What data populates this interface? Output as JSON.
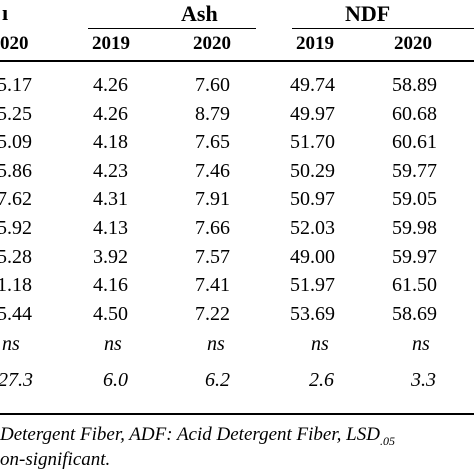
{
  "header": {
    "groups": [
      {
        "label": "ı"
      },
      {
        "label": "Ash"
      },
      {
        "label": "NDF"
      }
    ],
    "years": [
      "020",
      "2019",
      "2020",
      "2019",
      "2020"
    ]
  },
  "rows": [
    [
      "5.17",
      "4.26",
      "7.60",
      "49.74",
      "58.89"
    ],
    [
      "5.25",
      "4.26",
      "8.79",
      "49.97",
      "60.68"
    ],
    [
      "5.09",
      "4.18",
      "7.65",
      "51.70",
      "60.61"
    ],
    [
      "5.86",
      "4.23",
      "7.46",
      "50.29",
      "59.77"
    ],
    [
      "7.62",
      "4.31",
      "7.91",
      "50.97",
      "59.05"
    ],
    [
      "5.92",
      "4.13",
      "7.66",
      "52.03",
      "59.98"
    ],
    [
      "5.28",
      "3.92",
      "7.57",
      "49.00",
      "59.97"
    ],
    [
      "1.18",
      "4.16",
      "7.41",
      "51.97",
      "61.50"
    ],
    [
      "5.44",
      "4.50",
      "7.22",
      "53.69",
      "58.69"
    ]
  ],
  "significance_row": [
    "ns",
    "ns",
    "ns",
    "ns",
    "ns"
  ],
  "lsd_row": [
    "27.3",
    "6.0",
    "6.2",
    "2.6",
    "3.3"
  ],
  "footnote": {
    "line1_text": "Detergent Fiber, ADF: Acid Detergent Fiber, LSD",
    "line1_sub": ".05",
    "line2_text": "on-significant."
  }
}
